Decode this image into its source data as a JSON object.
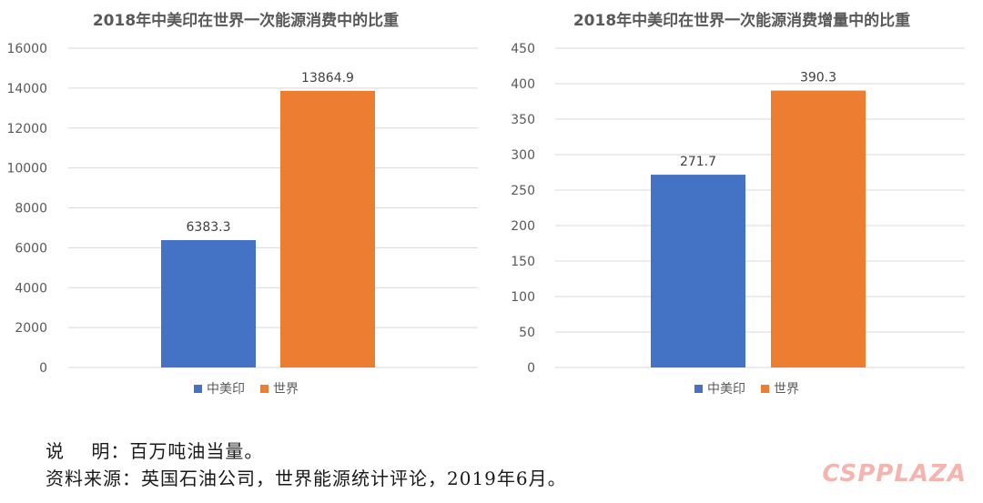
{
  "chart_data": [
    {
      "type": "bar",
      "title": "2018年中美印在世界一次能源消费中的比重",
      "categories": [
        "中美印",
        "世界"
      ],
      "values": [
        6383.3,
        13864.9
      ],
      "value_labels": [
        "6383.3",
        "13864.9"
      ],
      "colors": [
        "#4472c4",
        "#ed7d31"
      ],
      "ylim": [
        0,
        16000
      ],
      "yticks": [
        0,
        2000,
        4000,
        6000,
        8000,
        10000,
        12000,
        14000,
        16000
      ],
      "xlabel": "",
      "ylabel": "",
      "grid": true,
      "legend": [
        "中美印",
        "世界"
      ],
      "legend_position": "bottom"
    },
    {
      "type": "bar",
      "title": "2018年中美印在世界一次能源消费增量中的比重",
      "categories": [
        "中美印",
        "世界"
      ],
      "values": [
        271.7,
        390.3
      ],
      "value_labels": [
        "271.7",
        "390.3"
      ],
      "colors": [
        "#4472c4",
        "#ed7d31"
      ],
      "ylim": [
        0,
        450
      ],
      "yticks": [
        0,
        50,
        100,
        150,
        200,
        250,
        300,
        350,
        400,
        450
      ],
      "xlabel": "",
      "ylabel": "",
      "grid": true,
      "legend": [
        "中美印",
        "世界"
      ],
      "legend_position": "bottom"
    }
  ],
  "notes": {
    "line1": "说    明：百万吨油当量。",
    "line2": "资料来源：英国石油公司，世界能源统计评论，2019年6月。"
  },
  "watermark": "CSPPLAZA"
}
